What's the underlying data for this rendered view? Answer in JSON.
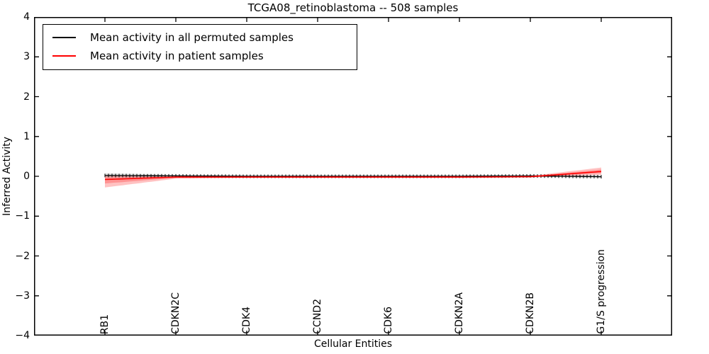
{
  "chart_data": {
    "type": "line",
    "title": "TCGA08_retinoblastoma -- 508 samples",
    "xlabel": "Cellular Entities",
    "ylabel": "Inferred Activity",
    "ylim": [
      -4,
      4
    ],
    "yticks": [
      4,
      3,
      2,
      1,
      0,
      -1,
      -2,
      -3,
      -4
    ],
    "grid": false,
    "legend_position": "upper left",
    "categories": [
      "RB1",
      "CDKN2C",
      "CDK4",
      "CCND2",
      "CDK6",
      "CDKN2A",
      "CDKN2B",
      "G1/S progression"
    ],
    "series": [
      {
        "name": "Mean activity in all permuted samples",
        "color": "#000000",
        "marker": "vertical-tick",
        "values": [
          0.02,
          0.01,
          0.0,
          0.0,
          0.0,
          0.0,
          0.01,
          -0.01
        ],
        "band_lower": [
          -0.04,
          -0.02,
          -0.03,
          -0.03,
          -0.03,
          -0.03,
          -0.02,
          -0.05
        ],
        "band_upper": [
          0.08,
          0.04,
          0.03,
          0.03,
          0.03,
          0.03,
          0.04,
          0.03
        ],
        "band_color": "rgba(0,0,0,0.10)"
      },
      {
        "name": "Mean activity in patient samples",
        "color": "#ff0000",
        "marker": "none",
        "values": [
          -0.08,
          -0.02,
          -0.02,
          -0.02,
          -0.02,
          -0.02,
          -0.01,
          0.12
        ],
        "band_lower": [
          -0.28,
          -0.06,
          -0.04,
          -0.04,
          -0.04,
          -0.04,
          -0.03,
          0.04
        ],
        "band_upper": [
          0.02,
          0.0,
          0.0,
          0.0,
          0.0,
          0.0,
          0.01,
          0.22
        ],
        "band_color": "rgba(255,0,0,0.24)"
      }
    ]
  }
}
